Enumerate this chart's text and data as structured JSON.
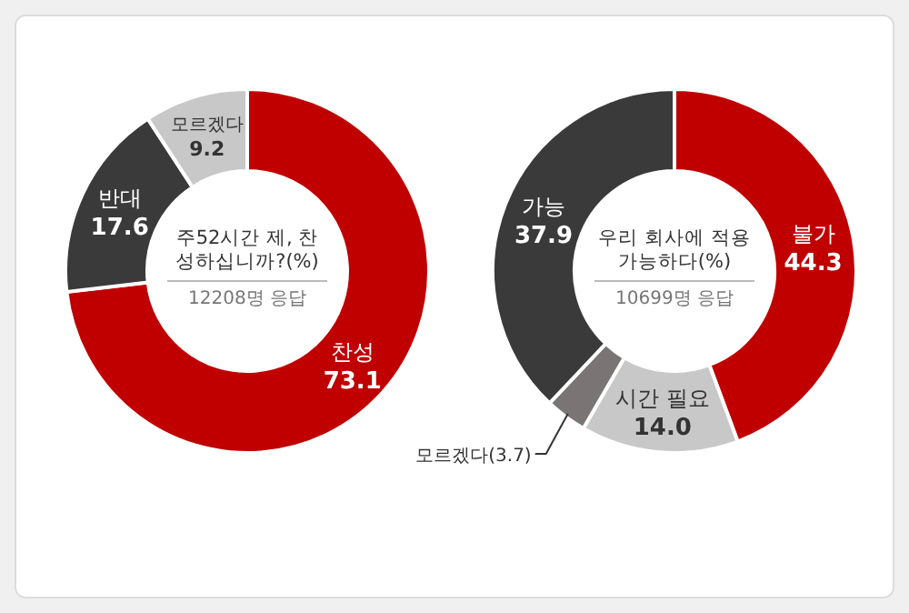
{
  "chart_data": [
    {
      "type": "donut",
      "title": "주52시간 제, 찬성하십니까?(%)",
      "subtitle": "12208명 응답",
      "categories": [
        "찬성",
        "반대",
        "모르겠다"
      ],
      "values": [
        73.1,
        17.6,
        9.2
      ],
      "colors": [
        "#c00000",
        "#3a3a3a",
        "#c8c8c8"
      ],
      "value_labels": [
        "73.1",
        "17.6",
        "9.2"
      ]
    },
    {
      "type": "donut",
      "title": "우리 회사에 적용 가능하다(%)",
      "subtitle": "10699명 응답",
      "categories": [
        "불가",
        "시간 필요",
        "모르겠다",
        "가능"
      ],
      "values": [
        44.3,
        14.0,
        3.7,
        37.9
      ],
      "colors": [
        "#c00000",
        "#c8c8c8",
        "#7a7474",
        "#3a3a3a"
      ],
      "value_labels": [
        "44.3",
        "14.0",
        "(3.7)",
        "37.9"
      ]
    }
  ]
}
